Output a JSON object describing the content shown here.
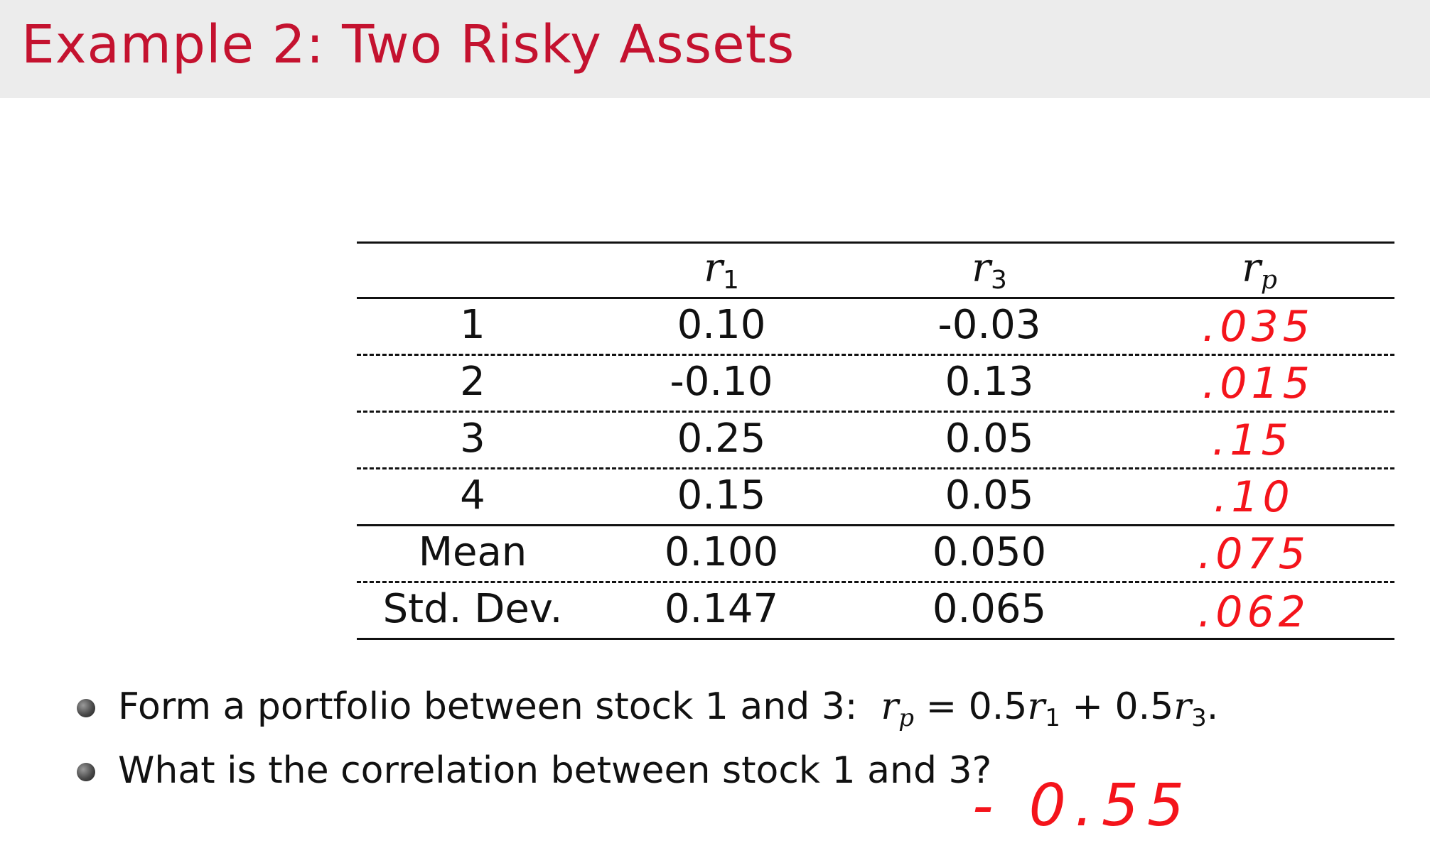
{
  "slide": {
    "title": "Example 2: Two Risky Assets"
  },
  "table": {
    "headers": {
      "r1": {
        "base": "r",
        "sub": "1"
      },
      "r3": {
        "base": "r",
        "sub": "3"
      },
      "rp": {
        "base": "r",
        "sub": "p"
      }
    },
    "rows": [
      {
        "label": "1",
        "r1": "0.10",
        "r3": "-0.03",
        "rp": ".035"
      },
      {
        "label": "2",
        "r1": "-0.10",
        "r3": "0.13",
        "rp": ".015"
      },
      {
        "label": "3",
        "r1": "0.25",
        "r3": "0.05",
        "rp": ".15"
      },
      {
        "label": "4",
        "r1": "0.15",
        "r3": "0.05",
        "rp": ".10"
      },
      {
        "label": "Mean",
        "r1": "0.100",
        "r3": "0.050",
        "rp": ".075"
      },
      {
        "label": "Std. Dev.",
        "r1": "0.147",
        "r3": "0.065",
        "rp": ".062"
      }
    ]
  },
  "bullets": {
    "b1": {
      "text": "Form a portfolio between stock 1 and 3:",
      "eq_lhs": "r",
      "eq_lhs_sub": "p",
      "eq_mid": " = 0.5",
      "eq_r1": "r",
      "eq_r1_sub": "1",
      "eq_plus": " + 0.5",
      "eq_r3": "r",
      "eq_r3_sub": "3",
      "eq_end": "."
    },
    "b2": {
      "text": "What is the correlation between stock 1 and 3?"
    }
  },
  "handwritten_answer": "- 0.55"
}
